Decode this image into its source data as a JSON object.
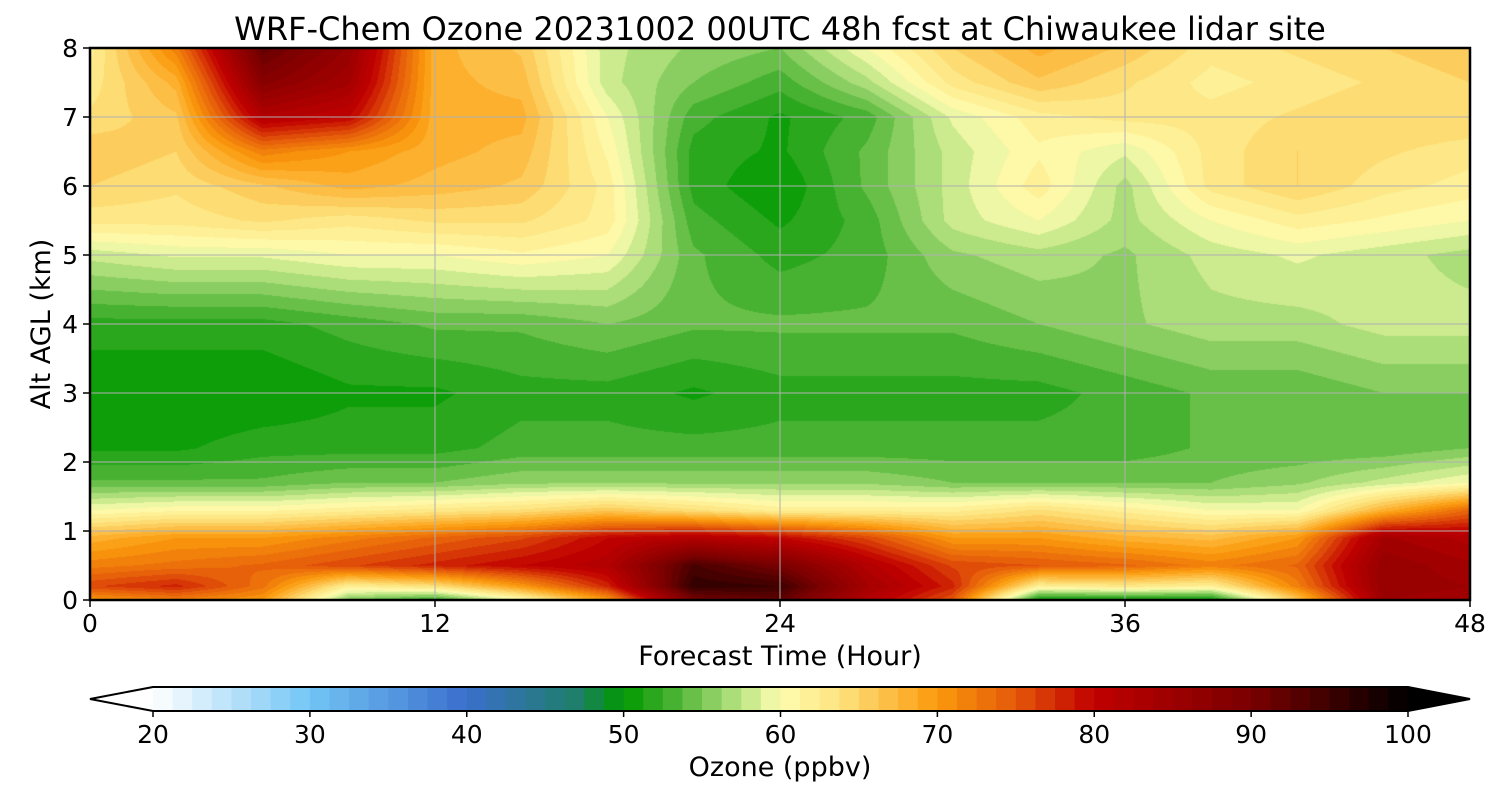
{
  "chart_data": {
    "type": "heatmap",
    "title": "WRF-Chem Ozone  20231002 00UTC 48h fcst at Chiwaukee lidar site",
    "xlabel": "Forecast Time (Hour)",
    "ylabel": "Alt AGL (km)",
    "xlim": [
      0,
      48
    ],
    "ylim": [
      0,
      8
    ],
    "xticks": [
      0,
      12,
      24,
      36,
      48
    ],
    "yticks": [
      0,
      1,
      2,
      3,
      4,
      5,
      6,
      7,
      8
    ],
    "grid": true,
    "x": [
      0,
      3,
      6,
      9,
      12,
      15,
      18,
      21,
      24,
      27,
      30,
      33,
      36,
      39,
      42,
      45,
      48
    ],
    "y": [
      0,
      0.2,
      0.5,
      0.9,
      1.3,
      1.7,
      2.2,
      3,
      4,
      5,
      5.5,
      6,
      6.5,
      7,
      7.5,
      8
    ],
    "z": [
      [
        70,
        72,
        70,
        55,
        52,
        60,
        70,
        90,
        92,
        82,
        75,
        50,
        50,
        50,
        66,
        85,
        84
      ],
      [
        76,
        78,
        73,
        62,
        64,
        70,
        78,
        96,
        95,
        84,
        78,
        62,
        63,
        62,
        72,
        86,
        85
      ],
      [
        72,
        73,
        74,
        76,
        78,
        80,
        82,
        94,
        90,
        82,
        76,
        75,
        74,
        72,
        74,
        86,
        84
      ],
      [
        68,
        70,
        70,
        72,
        74,
        76,
        80,
        82,
        80,
        76,
        70,
        70,
        68,
        67,
        70,
        84,
        82
      ],
      [
        60,
        61,
        61,
        62,
        63,
        64,
        66,
        64,
        62,
        62,
        62,
        64,
        62,
        60,
        60,
        68,
        74
      ],
      [
        54,
        54,
        54,
        55,
        55,
        56,
        56,
        56,
        56,
        56,
        55,
        55,
        55,
        55,
        56,
        58,
        60
      ],
      [
        51,
        51,
        52,
        52,
        52,
        53,
        53,
        53,
        53,
        53,
        53,
        53,
        53,
        54,
        54,
        54,
        55
      ],
      [
        50,
        50,
        50,
        51,
        51,
        52,
        52,
        51,
        52,
        52,
        52,
        52,
        53,
        54,
        54,
        55,
        55
      ],
      [
        52,
        52,
        52,
        53,
        54,
        54,
        55,
        54,
        54,
        54,
        54,
        55,
        56,
        57,
        57,
        58,
        58
      ],
      [
        58,
        59,
        59,
        60,
        60,
        61,
        60,
        54,
        52,
        53,
        56,
        57,
        56,
        58,
        59,
        58,
        57
      ],
      [
        63,
        63,
        64,
        63,
        64,
        64,
        62,
        53,
        51,
        53,
        58,
        60,
        57,
        60,
        62,
        61,
        60
      ],
      [
        65,
        64,
        66,
        68,
        67,
        66,
        62,
        52,
        50,
        54,
        58,
        62,
        57,
        63,
        65,
        63,
        62
      ],
      [
        66,
        65,
        72,
        70,
        68,
        67,
        61,
        52,
        51,
        54,
        58,
        61,
        59,
        63,
        65,
        64,
        63
      ],
      [
        64,
        66,
        82,
        80,
        68,
        68,
        60,
        53,
        51,
        53,
        59,
        62,
        63,
        63,
        64,
        65,
        65
      ],
      [
        63,
        68,
        88,
        84,
        68,
        67,
        58,
        55,
        53,
        57,
        63,
        66,
        64,
        62,
        63,
        64,
        65
      ],
      [
        62,
        72,
        92,
        86,
        68,
        66,
        58,
        56,
        55,
        60,
        65,
        68,
        66,
        63,
        64,
        65,
        66
      ]
    ],
    "colorbar": {
      "label": "Ozone  (ppbv)",
      "min": 20,
      "max": 100,
      "ticks": [
        20,
        30,
        40,
        50,
        60,
        70,
        80,
        90,
        100
      ],
      "extend": "both",
      "stops": [
        {
          "v": 20,
          "color": "#ffffff"
        },
        {
          "v": 30,
          "color": "#72c5f5"
        },
        {
          "v": 40,
          "color": "#3a6fcc"
        },
        {
          "v": 47,
          "color": "#1e7e6a"
        },
        {
          "v": 50,
          "color": "#009900"
        },
        {
          "v": 53,
          "color": "#44b030"
        },
        {
          "v": 57,
          "color": "#aede7a"
        },
        {
          "v": 60,
          "color": "#fefeb0"
        },
        {
          "v": 64,
          "color": "#fde07a"
        },
        {
          "v": 70,
          "color": "#fb9a0c"
        },
        {
          "v": 75,
          "color": "#e4580a"
        },
        {
          "v": 80,
          "color": "#c00000"
        },
        {
          "v": 90,
          "color": "#7a0000"
        },
        {
          "v": 100,
          "color": "#000000"
        }
      ]
    }
  }
}
